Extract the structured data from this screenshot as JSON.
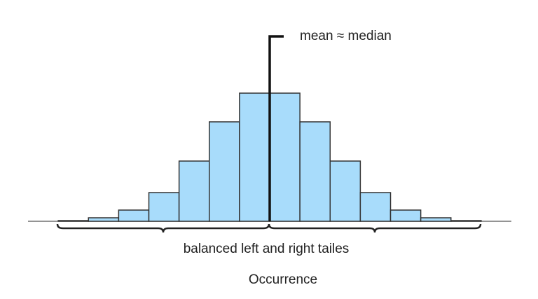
{
  "chart_data": {
    "type": "histogram",
    "bins": [
      0,
      1,
      2,
      3,
      4,
      5,
      6,
      7,
      8,
      9,
      10,
      11,
      12,
      13,
      14
    ],
    "values": [
      1,
      5,
      16,
      41,
      86,
      142,
      183,
      183,
      142,
      86,
      41,
      16,
      5,
      1
    ],
    "color": "#a8dcfb",
    "xlim": [
      -1,
      15
    ],
    "ylim": [
      0,
      200
    ],
    "mean": 7,
    "mean_label": "mean ≈ median",
    "tails_label": "balanced left and right tailes",
    "xlabel": "Occurrence"
  }
}
